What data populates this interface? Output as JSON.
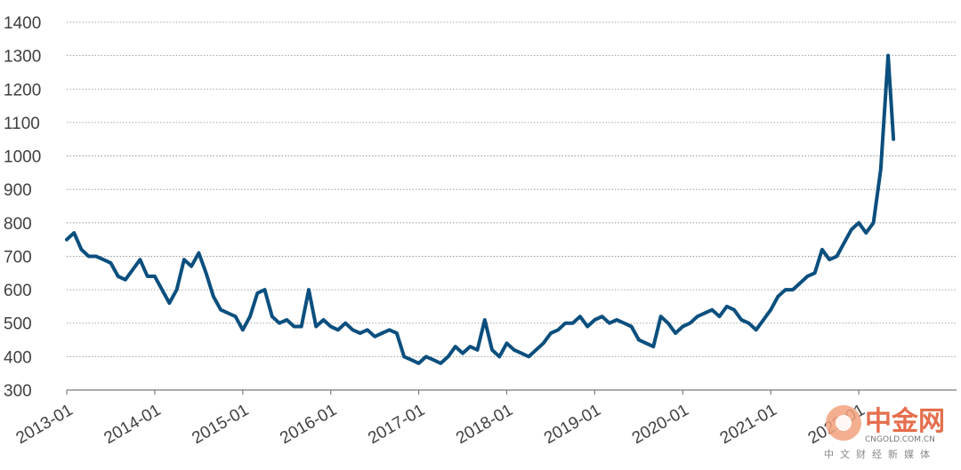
{
  "chart_data": {
    "type": "line",
    "title": "",
    "xlabel": "",
    "ylabel": "",
    "ylim": [
      300,
      1400
    ],
    "yticks": [
      300,
      400,
      500,
      600,
      700,
      800,
      900,
      1000,
      1100,
      1200,
      1300,
      1400
    ],
    "xlim": [
      "2013-01",
      "2022-06"
    ],
    "xticks": [
      "2013-01",
      "2014-01",
      "2015-01",
      "2016-01",
      "2017-01",
      "2018-01",
      "2019-01",
      "2020-01",
      "2021-01",
      "2022-01"
    ],
    "grid": "horizontal dotted",
    "legend": "none",
    "series": [
      {
        "color": "#0b4f7e",
        "x": [
          "2013-01",
          "2013-02",
          "2013-03",
          "2013-04",
          "2013-05",
          "2013-06",
          "2013-07",
          "2013-08",
          "2013-09",
          "2013-10",
          "2013-11",
          "2013-12",
          "2014-01",
          "2014-02",
          "2014-03",
          "2014-04",
          "2014-05",
          "2014-06",
          "2014-07",
          "2014-08",
          "2014-09",
          "2014-10",
          "2014-11",
          "2014-12",
          "2015-01",
          "2015-02",
          "2015-03",
          "2015-04",
          "2015-05",
          "2015-06",
          "2015-07",
          "2015-08",
          "2015-09",
          "2015-10",
          "2015-11",
          "2015-12",
          "2016-01",
          "2016-02",
          "2016-03",
          "2016-04",
          "2016-05",
          "2016-06",
          "2016-07",
          "2016-08",
          "2016-09",
          "2016-10",
          "2016-11",
          "2016-12",
          "2017-01",
          "2017-02",
          "2017-03",
          "2017-04",
          "2017-05",
          "2017-06",
          "2017-07",
          "2017-08",
          "2017-09",
          "2017-10",
          "2017-11",
          "2017-12",
          "2018-01",
          "2018-02",
          "2018-03",
          "2018-04",
          "2018-05",
          "2018-06",
          "2018-07",
          "2018-08",
          "2018-09",
          "2018-10",
          "2018-11",
          "2018-12",
          "2019-01",
          "2019-02",
          "2019-03",
          "2019-04",
          "2019-05",
          "2019-06",
          "2019-07",
          "2019-08",
          "2019-09",
          "2019-10",
          "2019-11",
          "2019-12",
          "2020-01",
          "2020-02",
          "2020-03",
          "2020-04",
          "2020-05",
          "2020-06",
          "2020-07",
          "2020-08",
          "2020-09",
          "2020-10",
          "2020-11",
          "2020-12",
          "2021-01",
          "2021-02",
          "2021-03",
          "2021-04",
          "2021-05",
          "2021-06",
          "2021-07",
          "2021-08",
          "2021-09",
          "2021-10",
          "2021-11",
          "2021-12",
          "2022-01",
          "2022-02",
          "2022-03",
          "2022-04",
          "2022-05"
        ],
        "values": [
          750,
          770,
          720,
          700,
          700,
          690,
          680,
          640,
          630,
          660,
          690,
          640,
          640,
          600,
          560,
          600,
          690,
          670,
          710,
          650,
          580,
          540,
          530,
          520,
          480,
          520,
          590,
          600,
          520,
          500,
          510,
          490,
          490,
          600,
          490,
          510,
          490,
          480,
          500,
          480,
          470,
          480,
          460,
          470,
          480,
          470,
          400,
          390,
          380,
          400,
          390,
          380,
          400,
          430,
          410,
          430,
          420,
          510,
          420,
          400,
          440,
          420,
          410,
          400,
          420,
          440,
          470,
          480,
          500,
          500,
          520,
          490,
          510,
          520,
          500,
          510,
          500,
          490,
          450,
          440,
          430,
          520,
          500,
          470,
          490,
          500,
          520,
          530,
          540,
          520,
          550,
          540,
          510,
          500,
          480,
          510,
          540,
          580,
          600,
          600,
          620,
          640,
          650,
          720,
          690,
          700,
          740,
          780,
          800,
          770,
          800,
          960,
          1300
        ]
      },
      {
        "color": "#0b4f7e",
        "x": [
          "2022-05"
        ],
        "values": [
          1050
        ]
      }
    ]
  }
}
